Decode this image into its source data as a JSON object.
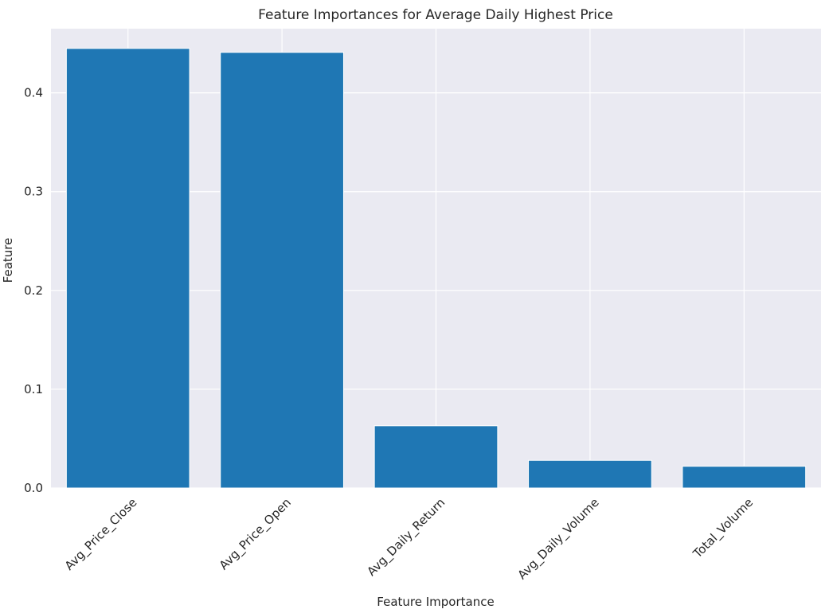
{
  "chart_data": {
    "type": "bar",
    "title": "Feature Importances for Average Daily Highest Price",
    "xlabel": "Feature Importance",
    "ylabel": "Feature",
    "categories": [
      "Avg_Price_Close",
      "Avg_Price_Open",
      "Avg_Daily_Return",
      "Avg_Daily_Volume",
      "Total_Volume"
    ],
    "values": [
      0.445,
      0.441,
      0.063,
      0.028,
      0.022
    ],
    "ylim": [
      0,
      0.465
    ],
    "yticks": [
      0.0,
      0.1,
      0.2,
      0.3,
      0.4
    ],
    "ytick_labels": [
      "0.0",
      "0.1",
      "0.2",
      "0.3",
      "0.4"
    ],
    "grid": true,
    "bar_color": "#1f77b4",
    "background_color": "#eaeaf2",
    "grid_color": "#ffffff",
    "xtick_rotation": -45
  }
}
